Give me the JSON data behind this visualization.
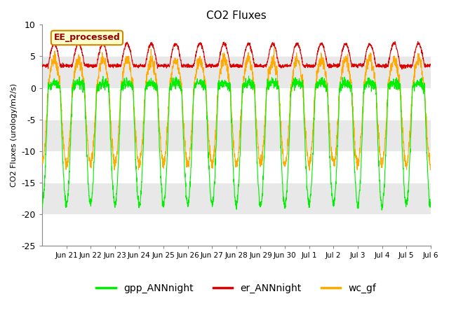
{
  "title": "CO2 Fluxes",
  "ylabel": "CO2 Fluxes (urology/m2/s)",
  "ylim": [
    -25,
    10
  ],
  "yticks": [
    -25,
    -20,
    -15,
    -10,
    -5,
    0,
    5,
    10
  ],
  "fig_bg": "#ffffff",
  "plot_bg": "#e8e8e8",
  "band_color": "#d0d0d0",
  "legend_label": "EE_processed",
  "gpp_color": "#00ee00",
  "er_color": "#dd0000",
  "wc_color": "#ffaa00",
  "gpp_label": "gpp_ANNnight",
  "er_label": "er_ANNnight",
  "wc_label": "wc_gf",
  "n_days": 16,
  "ppd": 144,
  "tick_labels": [
    "Jun 21",
    "Jun 22",
    "Jun 23",
    "Jun 24",
    "Jun 25",
    "Jun 26",
    "Jun 27",
    "Jun 28",
    "Jun 29",
    "Jun 30",
    "Jul 1",
    "Jul 2",
    "Jul 3",
    "Jul 4",
    "Jul 5",
    "Jul 6"
  ],
  "day_start": 0.25,
  "day_end": 0.75
}
